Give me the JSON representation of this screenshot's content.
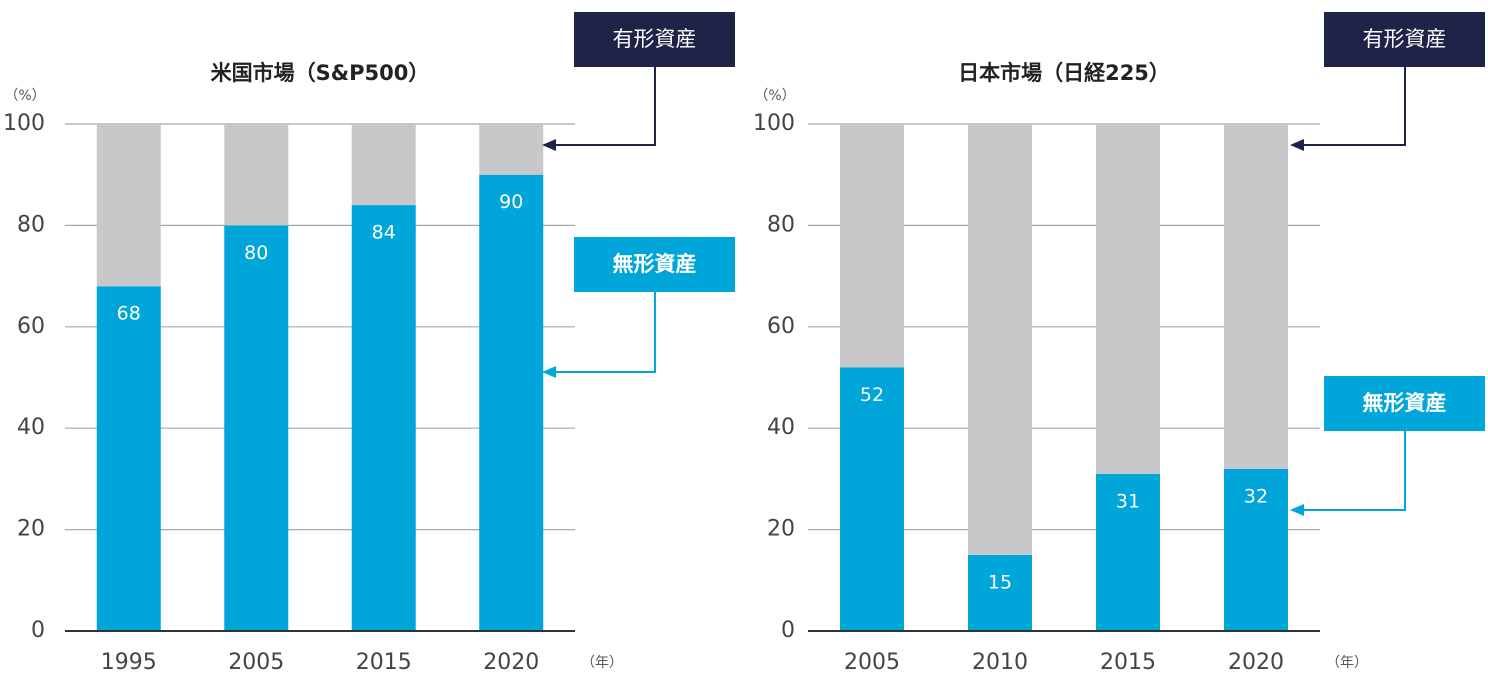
{
  "chart_data": [
    {
      "type": "bar",
      "stacked": true,
      "title": "米国市場（S&P500）",
      "y_label": "（%）",
      "x_label": "（年）",
      "categories": [
        "1995",
        "2005",
        "2015",
        "2020"
      ],
      "series": [
        {
          "name": "無形資産",
          "color": "#00a5da",
          "values": [
            68,
            80,
            84,
            90
          ],
          "data_labels": true
        },
        {
          "name": "有形資産",
          "color": "#c8c8ca",
          "values": [
            32,
            20,
            16,
            10
          ],
          "data_labels": false
        }
      ],
      "ylim": [
        0,
        100
      ],
      "yticks": [
        0,
        20,
        40,
        60,
        80,
        100
      ],
      "grid": true
    },
    {
      "type": "bar",
      "stacked": true,
      "title": "日本市場（日経225）",
      "y_label": "（%）",
      "x_label": "（年）",
      "categories": [
        "2005",
        "2010",
        "2015",
        "2020"
      ],
      "series": [
        {
          "name": "無形資産",
          "color": "#00a5da",
          "values": [
            52,
            15,
            31,
            32
          ],
          "data_labels": true
        },
        {
          "name": "有形資産",
          "color": "#c8c8ca",
          "values": [
            48,
            85,
            69,
            68
          ],
          "data_labels": false
        }
      ],
      "ylim": [
        0,
        100
      ],
      "yticks": [
        0,
        20,
        40,
        60,
        80,
        100
      ],
      "grid": true
    }
  ]
}
